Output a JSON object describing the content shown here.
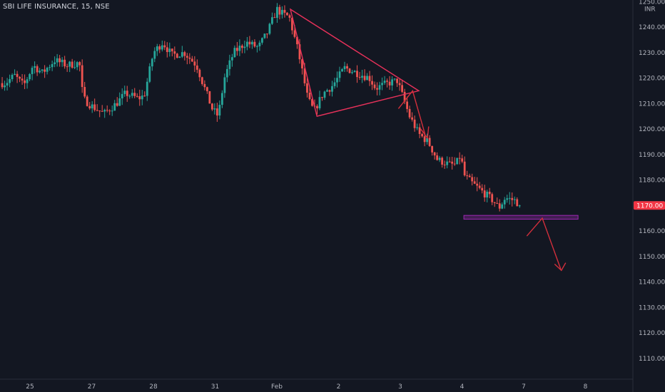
{
  "header": {
    "title": "SBI LIFE INSURANCE, 15, NSE"
  },
  "colors": {
    "background": "#131722",
    "up": "#26a69a",
    "down": "#ef5350",
    "pattern_line": "#e8315a",
    "arrow": "#d32f3c",
    "support_zone": "#9c27b0",
    "axis_text": "#b2b5be",
    "price_tag": "#f23645"
  },
  "chart_data": {
    "type": "candlestick",
    "title": "SBI LIFE INSURANCE, 15, NSE",
    "currency_label": "INR",
    "ylim": [
      1103,
      1254
    ],
    "y_ticks": [
      1110,
      1120,
      1130,
      1140,
      1150,
      1160,
      1170,
      1180,
      1190,
      1200,
      1210,
      1220,
      1230,
      1240,
      1250
    ],
    "y_tick_labels": [
      "1110.00",
      "1120.00",
      "1130.00",
      "1140.00",
      "1150.00",
      "1160.00",
      "1170.00",
      "1180.00",
      "1190.00",
      "1200.00",
      "1210.00",
      "1220.00",
      "1230.00",
      "1240.00",
      "1250.00"
    ],
    "x_tick_labels": [
      "25",
      "27",
      "28",
      "31",
      "Feb",
      "2",
      "3",
      "4",
      "7",
      "8"
    ],
    "x_tick_positions": [
      0,
      1,
      2,
      3,
      4,
      5,
      6,
      7,
      8,
      9
    ],
    "last_price": 1170.0,
    "last_price_label": "1170.00",
    "grid": false,
    "close_path": [
      [
        -0.4,
        1218
      ],
      [
        -0.25,
        1221
      ],
      [
        -0.1,
        1217
      ],
      [
        0.05,
        1225
      ],
      [
        0.2,
        1222
      ],
      [
        0.4,
        1227
      ],
      [
        0.6,
        1225
      ],
      [
        0.8,
        1226
      ],
      [
        0.86,
        1212
      ],
      [
        1.0,
        1209
      ],
      [
        1.2,
        1206
      ],
      [
        1.4,
        1210
      ],
      [
        1.55,
        1214
      ],
      [
        1.75,
        1212
      ],
      [
        1.85,
        1213
      ],
      [
        2.0,
        1230
      ],
      [
        2.15,
        1234
      ],
      [
        2.3,
        1229
      ],
      [
        2.5,
        1230
      ],
      [
        2.7,
        1225
      ],
      [
        2.8,
        1218
      ],
      [
        2.95,
        1208
      ],
      [
        3.05,
        1205
      ],
      [
        3.15,
        1220
      ],
      [
        3.3,
        1230
      ],
      [
        3.5,
        1234
      ],
      [
        3.7,
        1232
      ],
      [
        3.85,
        1238
      ],
      [
        4.0,
        1247
      ],
      [
        4.1,
        1245
      ],
      [
        4.2,
        1244
      ],
      [
        4.35,
        1230
      ],
      [
        4.5,
        1212
      ],
      [
        4.6,
        1207
      ],
      [
        4.75,
        1214
      ],
      [
        4.9,
        1217
      ],
      [
        5.1,
        1224
      ],
      [
        5.3,
        1222
      ],
      [
        5.5,
        1220
      ],
      [
        5.6,
        1216
      ],
      [
        5.8,
        1218
      ],
      [
        5.95,
        1219
      ],
      [
        6.05,
        1212
      ],
      [
        6.15,
        1205
      ],
      [
        6.3,
        1198
      ],
      [
        6.45,
        1195
      ],
      [
        6.6,
        1188
      ],
      [
        6.8,
        1186
      ],
      [
        6.9,
        1186
      ],
      [
        6.98,
        1190
      ],
      [
        7.03,
        1182
      ],
      [
        7.15,
        1179
      ],
      [
        7.35,
        1175
      ],
      [
        7.5,
        1172
      ],
      [
        7.6,
        1169
      ],
      [
        7.7,
        1173
      ],
      [
        7.85,
        1172
      ],
      [
        7.95,
        1170
      ]
    ],
    "annotations": {
      "triangle": [
        [
          4.22,
          1247
        ],
        [
          6.3,
          1215
        ],
        [
          4.65,
          1205
        ]
      ],
      "breakdown_arrow": [
        [
          5.97,
          1208
        ],
        [
          6.2,
          1215
        ],
        [
          6.4,
          1198
        ],
        [
          6.33,
          1200
        ],
        [
          6.44,
          1196.5
        ],
        [
          6.46,
          1201
        ]
      ],
      "support_zone": [
        7.03,
        8.88,
        1164.6,
        1166.1
      ],
      "projection_arrow": [
        [
          8.05,
          1158
        ],
        [
          8.3,
          1165
        ],
        [
          8.6,
          1145
        ],
        [
          8.5,
          1147
        ],
        [
          8.61,
          1144.5
        ],
        [
          8.68,
          1147.5
        ]
      ]
    }
  }
}
